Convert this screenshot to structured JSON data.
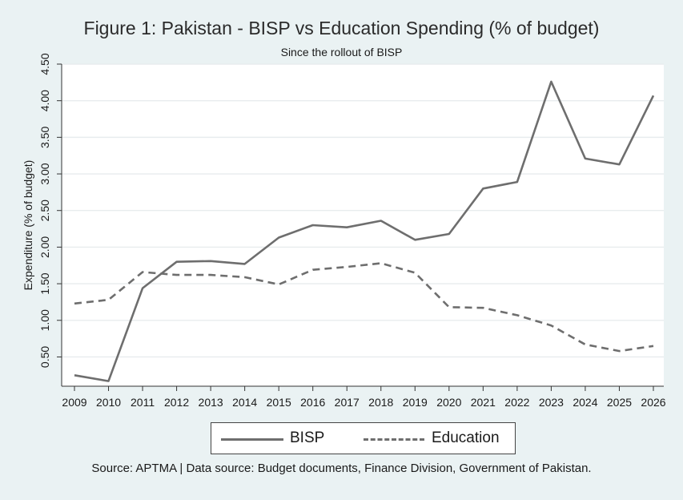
{
  "chart_data": {
    "type": "line",
    "title": "Figure 1: Pakistan - BISP vs Education Spending (% of budget)",
    "subtitle": "Since the rollout of BISP",
    "ylabel": "Expenditure (% of budget)",
    "xlabel": "",
    "ylim": [
      0.1,
      4.5
    ],
    "yticks": [
      "0.50",
      "1.00",
      "1.50",
      "2.00",
      "2.50",
      "3.00",
      "3.50",
      "4.00",
      "4.50"
    ],
    "x": [
      "2009",
      "2010",
      "2011",
      "2012",
      "2013",
      "2014",
      "2015",
      "2016",
      "2017",
      "2018",
      "2019",
      "2020",
      "2021",
      "2022",
      "2023",
      "2024",
      "2025",
      "2026"
    ],
    "series": [
      {
        "name": "BISP",
        "style": "solid",
        "color": "#6e6e6e",
        "values": [
          0.25,
          0.17,
          1.44,
          1.8,
          1.81,
          1.77,
          2.13,
          2.3,
          2.27,
          2.36,
          2.1,
          2.18,
          2.8,
          2.89,
          4.26,
          3.21,
          3.13,
          4.07
        ]
      },
      {
        "name": "Education",
        "style": "dashed",
        "color": "#6e6e6e",
        "values": [
          1.23,
          1.28,
          1.66,
          1.62,
          1.62,
          1.59,
          1.49,
          1.69,
          1.73,
          1.78,
          1.65,
          1.18,
          1.17,
          1.07,
          0.93,
          0.67,
          0.58,
          0.65
        ]
      }
    ],
    "grid": true,
    "legend": "bottom"
  },
  "footer": {
    "source": "Source: APTMA | Data source: Budget documents, Finance Division, Government of Pakistan."
  },
  "colors": {
    "background": "#eaf2f3",
    "plot_background": "#ffffff",
    "line": "#6e6e6e"
  }
}
